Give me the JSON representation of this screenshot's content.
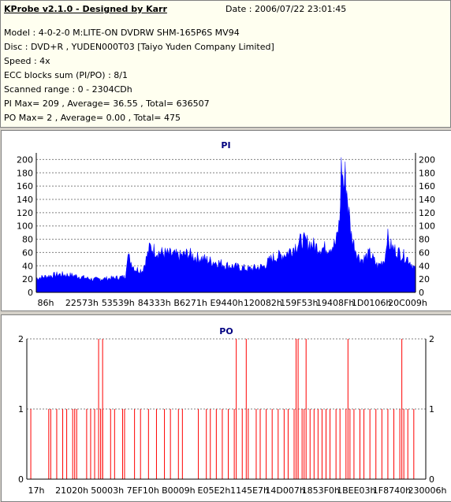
{
  "info": {
    "title": "KProbe v2.1.0 - Designed by Karr",
    "date": "Date : 2006/07/22 23:01:45",
    "model": "Model : 4-0-2-0 M:LITE-ON DVDRW SHM-165P6S MV94",
    "disc": "Disc : DVD+R , YUDEN000T03 [Taiyo Yuden Company Limited]",
    "speed": "Speed : 4x",
    "ecc": "ECC blocks sum (PI/PO) : 8/1",
    "range": "Scanned range : 0 - 2304CDh",
    "pi_stats": "PI Max= 209 , Average= 36.55 , Total= 636507",
    "po_stats": "PO Max= 2 , Average= 0.00 , Total= 475"
  },
  "colors": {
    "pi": "#0000ff",
    "po": "#ff0000",
    "grid": "#808080",
    "title": "#000080"
  },
  "chart_data": [
    {
      "type": "area",
      "title": "PI",
      "ylim": [
        0,
        210
      ],
      "yticks": [
        0,
        20,
        40,
        60,
        80,
        100,
        120,
        140,
        160,
        180,
        200
      ],
      "xticks": [
        "86h",
        "22573h",
        "53539h",
        "84333h",
        "B6271h",
        "E9440h",
        "120082h",
        "159F53h",
        "19408Fh",
        "1D0106h",
        "20C009h"
      ],
      "grid": true,
      "x": [
        0,
        0.03,
        0.06,
        0.1,
        0.15,
        0.2,
        0.235,
        0.24,
        0.26,
        0.28,
        0.3,
        0.32,
        0.34,
        0.36,
        0.38,
        0.4,
        0.42,
        0.44,
        0.46,
        0.48,
        0.5,
        0.52,
        0.54,
        0.56,
        0.58,
        0.6,
        0.62,
        0.64,
        0.66,
        0.68,
        0.7,
        0.72,
        0.74,
        0.76,
        0.78,
        0.79,
        0.8,
        0.805,
        0.81,
        0.815,
        0.82,
        0.83,
        0.84,
        0.85,
        0.86,
        0.88,
        0.9,
        0.92,
        0.925,
        0.93,
        0.94,
        0.96,
        0.98,
        1.0
      ],
      "values": [
        22,
        25,
        28,
        26,
        20,
        22,
        24,
        58,
        36,
        34,
        70,
        62,
        60,
        58,
        56,
        60,
        54,
        52,
        48,
        46,
        42,
        40,
        38,
        36,
        38,
        40,
        52,
        56,
        60,
        70,
        80,
        76,
        70,
        68,
        72,
        75,
        110,
        205,
        160,
        180,
        150,
        90,
        70,
        55,
        50,
        60,
        40,
        52,
        90,
        75,
        68,
        60,
        52,
        35
      ]
    },
    {
      "type": "bar",
      "title": "PO",
      "ylim": [
        0,
        2
      ],
      "yticks": [
        0,
        1,
        2
      ],
      "xticks": [
        "17h",
        "21020h",
        "50003h",
        "7EF10h",
        "B0009h",
        "E05E2h",
        "1145E7h",
        "14D007h",
        "1853F0h",
        "1BEE03h",
        "1F8740h",
        "230006h"
      ],
      "grid": true,
      "x_ones": [
        0.01,
        0.055,
        0.06,
        0.075,
        0.09,
        0.1,
        0.115,
        0.12,
        0.125,
        0.15,
        0.16,
        0.17,
        0.185,
        0.19,
        0.21,
        0.22,
        0.24,
        0.245,
        0.27,
        0.285,
        0.305,
        0.325,
        0.345,
        0.36,
        0.38,
        0.39,
        0.43,
        0.45,
        0.46,
        0.475,
        0.49,
        0.505,
        0.52,
        0.54,
        0.555,
        0.575,
        0.585,
        0.6,
        0.615,
        0.63,
        0.645,
        0.655,
        0.67,
        0.68,
        0.69,
        0.695,
        0.71,
        0.72,
        0.73,
        0.74,
        0.75,
        0.76,
        0.775,
        0.785,
        0.8,
        0.81,
        0.82,
        0.835,
        0.845,
        0.86,
        0.875,
        0.89,
        0.905,
        0.92,
        0.935,
        0.945,
        0.955,
        0.97
      ],
      "x_twos": [
        0.18,
        0.19,
        0.525,
        0.55,
        0.675,
        0.68,
        0.7,
        0.805,
        0.94
      ]
    }
  ]
}
